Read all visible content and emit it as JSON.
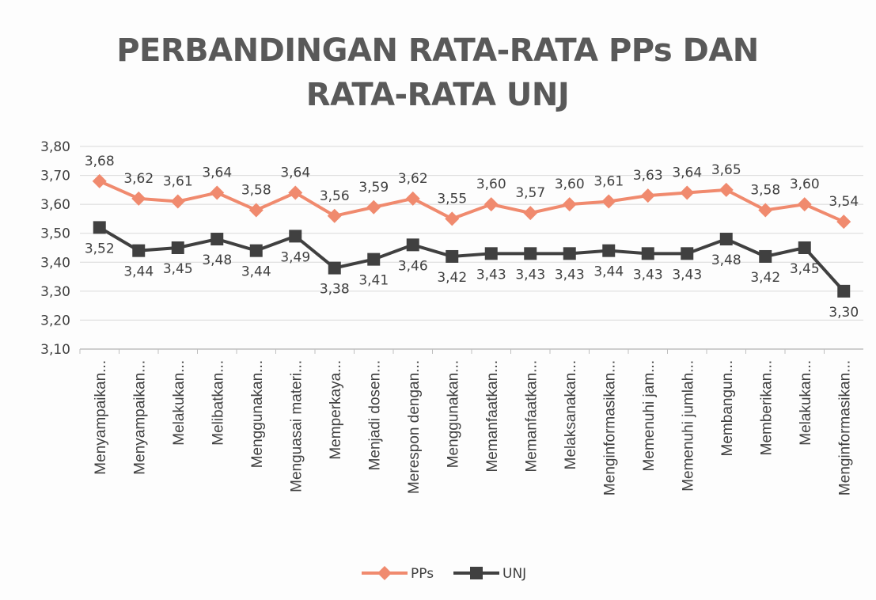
{
  "chart_data": {
    "type": "line",
    "title": "PERBANDINGAN RATA-RATA PPs DAN RATA-RATA UNJ",
    "categories": [
      "Menyampaikan...",
      "Menyampaikan...",
      "Melakukan...",
      "Melibatkan...",
      "Menggunakan...",
      "Menguasai materi...",
      "Memperkaya...",
      "Menjadi dosen...",
      "Merespon dengan...",
      "Menggunakan...",
      "Memanfaatkan...",
      "Memanfaatkan...",
      "Melaksanakan...",
      "Menginformasikan...",
      "Memenuhi jam...",
      "Memenuhi jumlah...",
      "Membangun...",
      "Memberikan...",
      "Melakukan...",
      "Menginformasikan..."
    ],
    "series": [
      {
        "name": "PPs",
        "color": "#f08a6e",
        "marker": "diamond",
        "label_position": "above",
        "values": [
          3.68,
          3.62,
          3.61,
          3.64,
          3.58,
          3.64,
          3.56,
          3.59,
          3.62,
          3.55,
          3.6,
          3.57,
          3.6,
          3.61,
          3.63,
          3.64,
          3.65,
          3.58,
          3.6,
          3.54
        ],
        "value_labels": [
          "3,68",
          "3,62",
          "3,61",
          "3,64",
          "3,58",
          "3,64",
          "3,56",
          "3,59",
          "3,62",
          "3,55",
          "3,60",
          "3,57",
          "3,60",
          "3,61",
          "3,63",
          "3,64",
          "3,65",
          "3,58",
          "3,60",
          "3,54"
        ]
      },
      {
        "name": "UNJ",
        "color": "#404040",
        "marker": "square",
        "label_position": "below",
        "values": [
          3.52,
          3.44,
          3.45,
          3.48,
          3.44,
          3.49,
          3.38,
          3.41,
          3.46,
          3.42,
          3.43,
          3.43,
          3.43,
          3.44,
          3.43,
          3.43,
          3.48,
          3.42,
          3.45,
          3.3
        ],
        "value_labels": [
          "3,52",
          "3,44",
          "3,45",
          "3,48",
          "3,44",
          "3,49",
          "3,38",
          "3,41",
          "3,46",
          "3,42",
          "3,43",
          "3,43",
          "3,43",
          "3,44",
          "3,43",
          "3,43",
          "3,48",
          "3,42",
          "3,45",
          "3,30"
        ]
      }
    ],
    "ylim": [
      3.1,
      3.8
    ],
    "yticks": [
      {
        "value": 3.1,
        "label": "3,10"
      },
      {
        "value": 3.2,
        "label": "3,20"
      },
      {
        "value": 3.3,
        "label": "3,30"
      },
      {
        "value": 3.4,
        "label": "3,40"
      },
      {
        "value": 3.5,
        "label": "3,50"
      },
      {
        "value": 3.6,
        "label": "3,60"
      },
      {
        "value": 3.7,
        "label": "3,70"
      },
      {
        "value": 3.8,
        "label": "3,80"
      }
    ],
    "grid": true,
    "legend": "bottom"
  }
}
